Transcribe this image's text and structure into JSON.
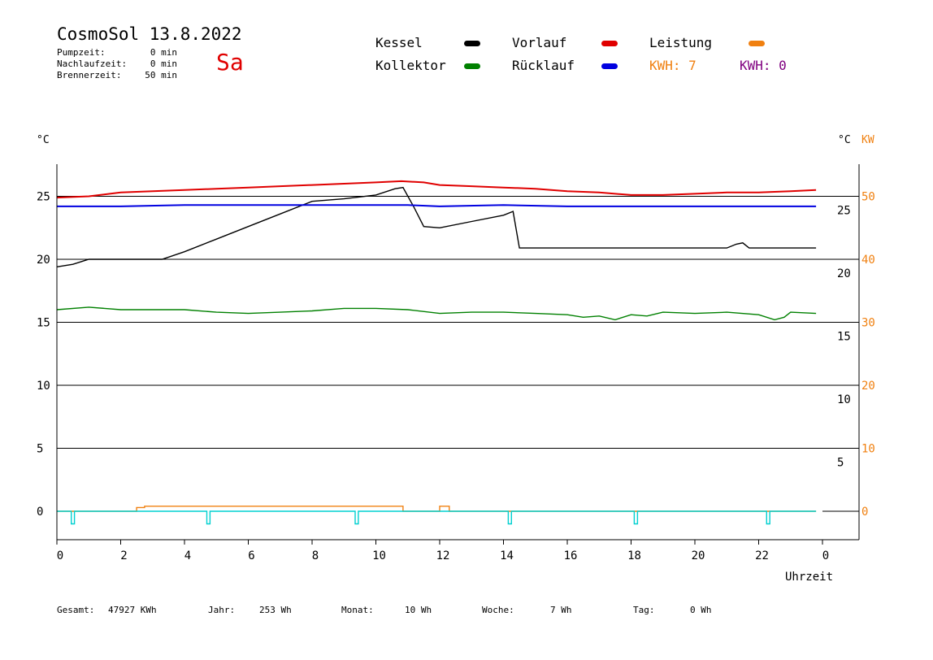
{
  "header": {
    "title": "CosmoSol 13.8.2022",
    "day": "Sa",
    "day_color": "#e00000",
    "stats": [
      {
        "label": "Pumpzeit:",
        "value": "0 min"
      },
      {
        "label": "Nachlaufzeit:",
        "value": "0 min"
      },
      {
        "label": "Brennerzeit:",
        "value": "50 min"
      }
    ]
  },
  "legend": {
    "items": [
      {
        "label": "Kessel",
        "color": "#000000"
      },
      {
        "label": "Vorlauf",
        "color": "#e00000"
      },
      {
        "label": "Leistung",
        "color": "#f08010"
      },
      {
        "label": "Kollektor",
        "color": "#008000"
      },
      {
        "label": "Rücklauf",
        "color": "#0000e0"
      }
    ],
    "kwh1": {
      "text": "KWH: 7",
      "color": "#f08010"
    },
    "kwh2": {
      "text": "KWH: 0",
      "color": "#800080"
    }
  },
  "axes": {
    "left_unit": "°C",
    "right_unit": "°C",
    "right_unit2": "KW",
    "xlabel": "Uhrzeit"
  },
  "footer": {
    "gesamt_label": "Gesamt:",
    "gesamt_value": "47927 KWh",
    "jahr_label": "Jahr:",
    "jahr_value": "253 Wh",
    "monat_label": "Monat:",
    "monat_value": "10 Wh",
    "woche_label": "Woche:",
    "woche_value": "7 Wh",
    "tag_label": "Tag:",
    "tag_value": "0 Wh"
  },
  "chart_data": {
    "type": "line",
    "xlim": [
      0,
      24
    ],
    "ylim": [
      -2,
      27
    ],
    "y2lim": [
      -4,
      54
    ],
    "grid": true,
    "x_ticks": [
      "0",
      "2",
      "4",
      "6",
      "8",
      "10",
      "12",
      "14",
      "16",
      "18",
      "20",
      "22",
      "0"
    ],
    "y_ticks_left": [
      "25",
      "20",
      "15",
      "10",
      "5",
      "0"
    ],
    "y_ticks_right": [
      "25",
      "20",
      "15",
      "10",
      "5"
    ],
    "y_ticks_right2": [
      "50",
      "40",
      "30",
      "20",
      "10",
      "0"
    ],
    "series": [
      {
        "name": "Kessel",
        "color": "#000000",
        "x": [
          0,
          0.5,
          1.0,
          1.5,
          3.3,
          4.0,
          5.0,
          6.0,
          7.0,
          8.0,
          9.0,
          10.0,
          10.6,
          10.85,
          11.2,
          11.5,
          12.0,
          13.0,
          14.0,
          14.3,
          14.5,
          21.0,
          21.3,
          21.5,
          21.7,
          23.8
        ],
        "y": [
          19.4,
          19.6,
          20.0,
          20.0,
          20.0,
          20.6,
          21.6,
          22.6,
          23.6,
          24.6,
          24.8,
          25.1,
          25.6,
          25.7,
          24.1,
          22.6,
          22.5,
          23.0,
          23.5,
          23.8,
          20.9,
          20.9,
          21.2,
          21.3,
          20.9,
          20.9
        ]
      },
      {
        "name": "Vorlauf",
        "color": "#e00000",
        "x": [
          0,
          1.0,
          2.0,
          3.0,
          4.0,
          5.0,
          6.0,
          7.0,
          8.0,
          9.0,
          10.0,
          10.8,
          11.5,
          12.0,
          13.0,
          14.0,
          15.0,
          16.0,
          17.0,
          18.0,
          19.0,
          20.0,
          21.0,
          22.0,
          23.0,
          23.8
        ],
        "y": [
          24.9,
          25.0,
          25.3,
          25.4,
          25.5,
          25.6,
          25.7,
          25.8,
          25.9,
          26.0,
          26.1,
          26.2,
          26.1,
          25.9,
          25.8,
          25.7,
          25.6,
          25.4,
          25.3,
          25.1,
          25.1,
          25.2,
          25.3,
          25.3,
          25.4,
          25.5
        ]
      },
      {
        "name": "Rücklauf",
        "color": "#0000e0",
        "x": [
          0,
          2.0,
          4.0,
          6.0,
          8.0,
          10.0,
          11.0,
          12.0,
          14.0,
          16.0,
          18.0,
          20.0,
          22.0,
          23.8
        ],
        "y": [
          24.2,
          24.2,
          24.3,
          24.3,
          24.3,
          24.3,
          24.3,
          24.2,
          24.3,
          24.2,
          24.2,
          24.2,
          24.2,
          24.2
        ]
      },
      {
        "name": "Kollektor",
        "color": "#008000",
        "x": [
          0,
          1.0,
          2.0,
          3.0,
          4.0,
          5.0,
          6.0,
          7.0,
          8.0,
          9.0,
          10.0,
          11.0,
          12.0,
          13.0,
          14.0,
          15.0,
          16.0,
          16.5,
          17.0,
          17.5,
          18.0,
          18.5,
          19.0,
          20.0,
          21.0,
          22.0,
          22.5,
          22.8,
          23.0,
          23.8
        ],
        "y": [
          16.0,
          16.2,
          16.0,
          16.0,
          16.0,
          15.8,
          15.7,
          15.8,
          15.9,
          16.1,
          16.1,
          16.0,
          15.7,
          15.8,
          15.8,
          15.7,
          15.6,
          15.4,
          15.5,
          15.2,
          15.6,
          15.5,
          15.8,
          15.7,
          15.8,
          15.6,
          15.2,
          15.4,
          15.8,
          15.7
        ]
      },
      {
        "name": "Leistung",
        "color": "#f08010",
        "x": [
          0,
          2.5,
          2.5,
          2.75,
          2.75,
          10.85,
          10.85,
          12.0,
          12.0,
          12.3,
          12.3,
          23.8
        ],
        "y": [
          0,
          0,
          0.3,
          0.3,
          0.4,
          0.4,
          0,
          0,
          0.4,
          0.4,
          0,
          0
        ]
      },
      {
        "color": "#00d0d0",
        "x": [
          0,
          0.45,
          0.45,
          0.55,
          0.55,
          4.7,
          4.7,
          4.8,
          4.8,
          9.35,
          9.35,
          9.45,
          9.45,
          14.15,
          14.15,
          14.25,
          14.25,
          18.1,
          18.1,
          18.2,
          18.2,
          22.25,
          22.25,
          22.35,
          22.35,
          23.8
        ],
        "y": [
          0,
          0,
          -1.0,
          -1.0,
          0,
          0,
          -1.0,
          -1.0,
          0,
          0,
          -1.0,
          -1.0,
          0,
          0,
          -1.0,
          -1.0,
          0,
          0,
          -1.0,
          -1.0,
          0,
          0,
          -1.0,
          -1.0,
          0,
          0
        ]
      }
    ]
  }
}
